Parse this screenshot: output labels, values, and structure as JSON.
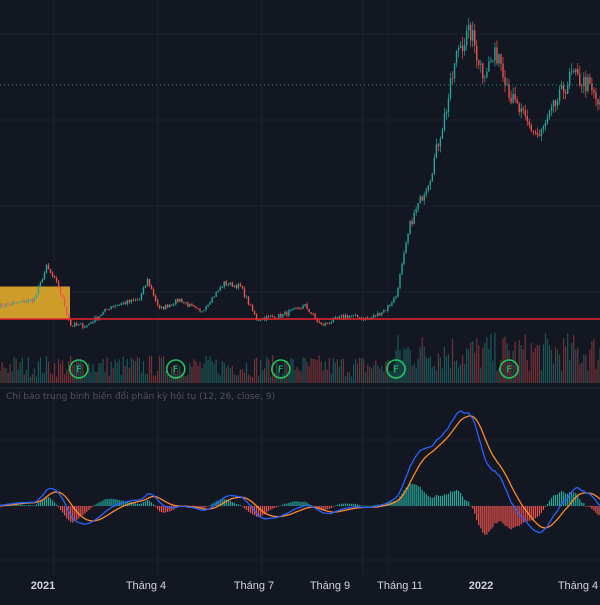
{
  "colors": {
    "background": "#131722",
    "grid": "#1e222d",
    "up": "#26a69a",
    "down": "#ef5350",
    "support_line": "#e8232a",
    "resistance_dotted": "#2a8a8a",
    "zone": "#f0b429",
    "macd_line": "#2962ff",
    "signal_line": "#ff8a28",
    "hist_up": "#26a69a",
    "hist_down": "#ef5350",
    "f_marker": "#22c55e",
    "axis_text": "#d1d4dc",
    "title_text": "#50535e"
  },
  "macd_title": "Chỉ báo trung bình biến đổi phân kỳ hội tụ (12, 26, close, 9)",
  "chart_data": {
    "type": "candlestick",
    "x_axis": {
      "ticks": [
        "2021",
        "Tháng 4",
        "Tháng 7",
        "Tháng 9",
        "Tháng 11",
        "2022",
        "Tháng 4"
      ],
      "bold_ticks": [
        "2021",
        "2022"
      ]
    },
    "grid": true,
    "price_scale": [
      0,
      100
    ],
    "price_anchors": [
      {
        "i": 0,
        "v": 12
      },
      {
        "i": 10,
        "v": 13
      },
      {
        "i": 18,
        "v": 14
      },
      {
        "i": 24,
        "v": 24
      },
      {
        "i": 30,
        "v": 18
      },
      {
        "i": 36,
        "v": 6
      },
      {
        "i": 44,
        "v": 6
      },
      {
        "i": 56,
        "v": 12
      },
      {
        "i": 70,
        "v": 14
      },
      {
        "i": 74,
        "v": 20
      },
      {
        "i": 80,
        "v": 11
      },
      {
        "i": 90,
        "v": 14
      },
      {
        "i": 100,
        "v": 10
      },
      {
        "i": 112,
        "v": 19
      },
      {
        "i": 120,
        "v": 18
      },
      {
        "i": 128,
        "v": 8
      },
      {
        "i": 140,
        "v": 9
      },
      {
        "i": 152,
        "v": 12
      },
      {
        "i": 160,
        "v": 6
      },
      {
        "i": 172,
        "v": 9
      },
      {
        "i": 184,
        "v": 8
      },
      {
        "i": 192,
        "v": 11
      },
      {
        "i": 197,
        "v": 15
      },
      {
        "i": 204,
        "v": 37
      },
      {
        "i": 214,
        "v": 52
      },
      {
        "i": 222,
        "v": 73
      },
      {
        "i": 228,
        "v": 92
      },
      {
        "i": 234,
        "v": 96
      },
      {
        "i": 240,
        "v": 84
      },
      {
        "i": 248,
        "v": 90
      },
      {
        "i": 254,
        "v": 76
      },
      {
        "i": 262,
        "v": 68
      },
      {
        "i": 268,
        "v": 64
      },
      {
        "i": 276,
        "v": 74
      },
      {
        "i": 284,
        "v": 83
      },
      {
        "i": 292,
        "v": 80
      },
      {
        "i": 299,
        "v": 72
      }
    ],
    "support_level": 8,
    "resistance_level": 80,
    "zone": {
      "from": 8,
      "to": 18
    },
    "signal_markers": [
      {
        "i": 40,
        "label": "F"
      },
      {
        "i": 88,
        "label": "F"
      },
      {
        "i": 140,
        "label": "F"
      },
      {
        "i": 197,
        "label": "F"
      },
      {
        "i": 253,
        "label": "F"
      }
    ],
    "series": [
      {
        "name": "MACD",
        "role": "macd"
      },
      {
        "name": "Signal",
        "role": "signal"
      },
      {
        "name": "Histogram",
        "role": "histogram"
      }
    ]
  }
}
